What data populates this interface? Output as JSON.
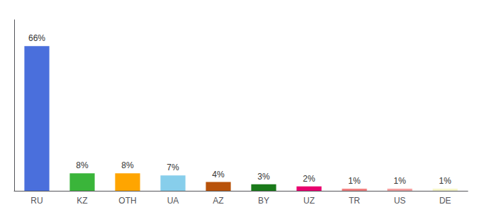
{
  "chart_data": {
    "type": "bar",
    "categories": [
      "RU",
      "KZ",
      "OTH",
      "UA",
      "AZ",
      "BY",
      "UZ",
      "TR",
      "US",
      "DE"
    ],
    "values": [
      66,
      8,
      8,
      7,
      4,
      3,
      2,
      1,
      1,
      1
    ],
    "value_labels": [
      "66%",
      "8%",
      "8%",
      "7%",
      "4%",
      "3%",
      "2%",
      "1%",
      "1%",
      "1%"
    ],
    "colors": [
      "#4a6fdc",
      "#3ab53a",
      "#ffa500",
      "#87ceeb",
      "#b8520a",
      "#1a7a1a",
      "#e8006e",
      "#f08080",
      "#f4a0a0",
      "#f5f5c8"
    ],
    "ylim": [
      0,
      78
    ],
    "data_labels": true,
    "tick_labels": "x",
    "grid": false
  }
}
